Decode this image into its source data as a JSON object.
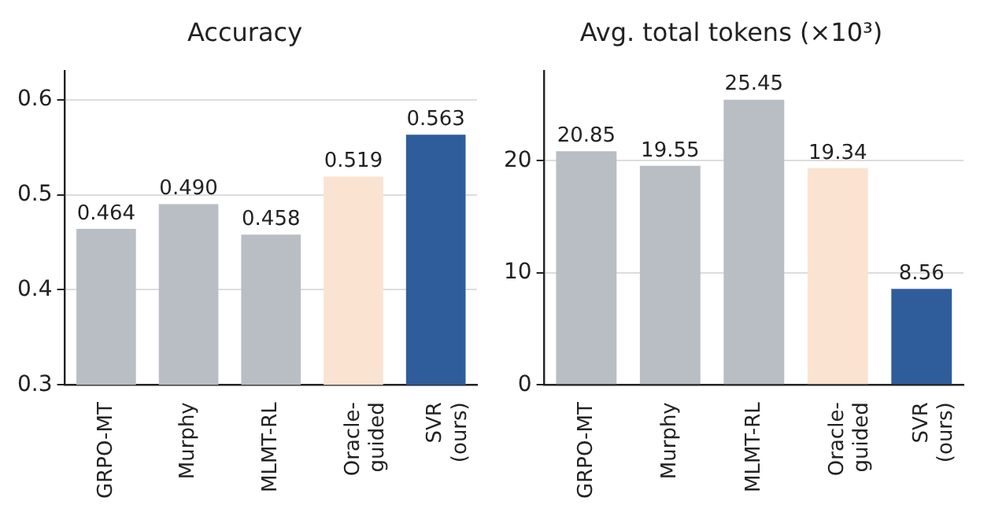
{
  "chart_data": [
    {
      "type": "bar",
      "title": "Accuracy",
      "categories": [
        "GRPO-MT",
        "Murphy",
        "MLMT-RL",
        "Oracle-guided",
        "SVR (ours)"
      ],
      "values": [
        0.464,
        0.49,
        0.458,
        0.519,
        0.563
      ],
      "value_labels": [
        "0.464",
        "0.490",
        "0.458",
        "0.519",
        "0.563"
      ],
      "colors": [
        "#b9bec5",
        "#b9bec5",
        "#b9bec5",
        "#fbe3d1",
        "#2f5d9b"
      ],
      "ylim": [
        0.3,
        0.63
      ],
      "yticks": [
        0.3,
        0.4,
        0.5,
        0.6
      ],
      "grid": "y"
    },
    {
      "type": "bar",
      "title": "Avg. total tokens (×10³)",
      "categories": [
        "GRPO-MT",
        "Murphy",
        "MLMT-RL",
        "Oracle-guided",
        "SVR (ours)"
      ],
      "values": [
        20.85,
        19.55,
        25.45,
        19.34,
        8.56
      ],
      "colors": [
        "#b9bec5",
        "#b9bec5",
        "#b9bec5",
        "#fbe3d1",
        "#2f5d9b"
      ],
      "ylim": [
        0,
        28
      ],
      "yticks": [
        0,
        10,
        20
      ],
      "grid": "y",
      "data_labels": true
    }
  ]
}
